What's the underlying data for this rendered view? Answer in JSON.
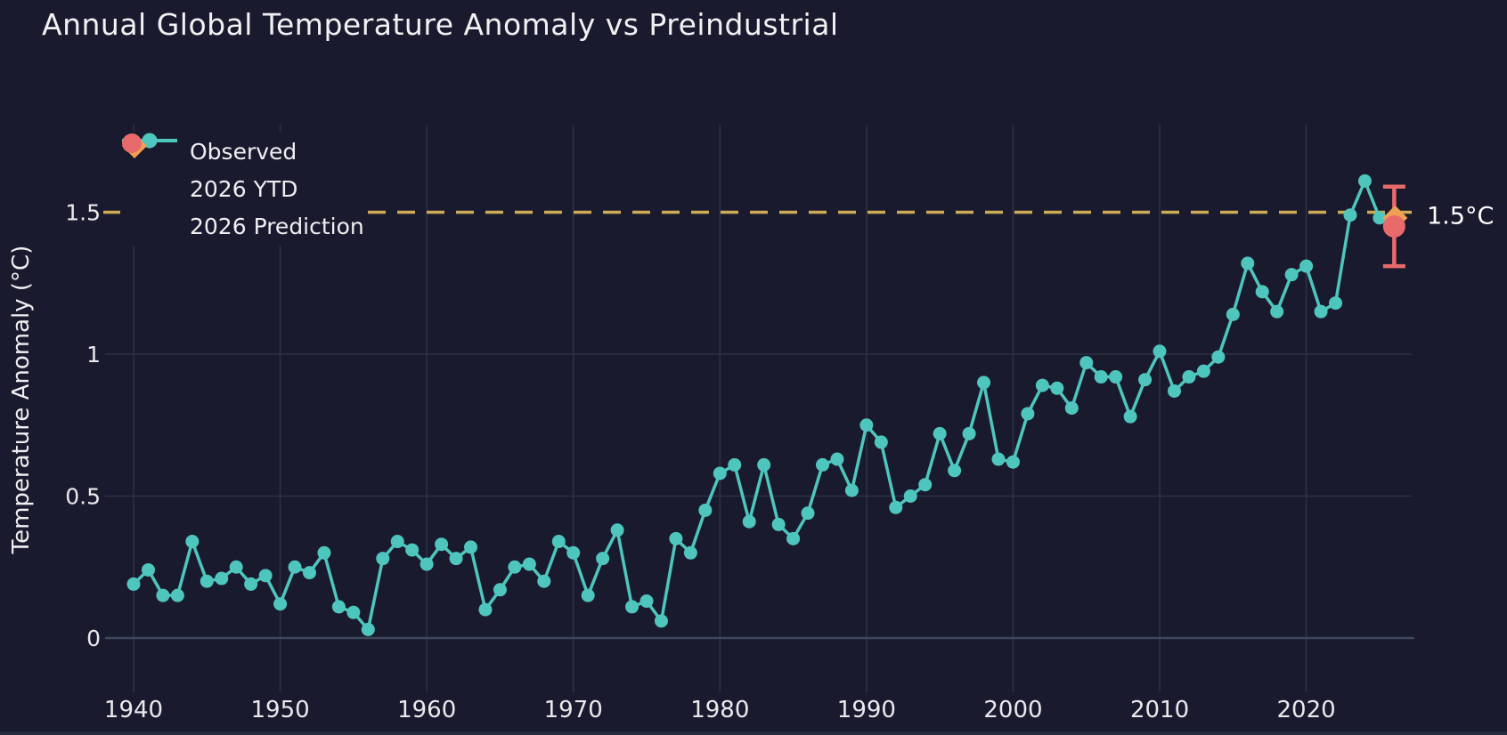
{
  "title": "Annual Global Temperature Anomaly vs Preindustrial",
  "annotation_label": "1.5°C",
  "colors": {
    "background": "#1a1a2e",
    "grid": "#2c3144",
    "zero_line": "#3d485e",
    "text": "#efeff1",
    "tick_text": "#e9e9ec",
    "observed": "#4ec6bd",
    "ytd": "#f0a053",
    "prediction": "#e96a6a",
    "threshold": "#ceac55",
    "annotation_text": "#ffffff"
  },
  "legend": {
    "items": [
      {
        "label": "Observed",
        "marker": "line-circle",
        "color": "#4ec6bd"
      },
      {
        "label": "2026 YTD",
        "marker": "diamond",
        "color": "#f0a053"
      },
      {
        "label": "2026 Prediction",
        "marker": "circle",
        "color": "#e96a6a"
      }
    ]
  },
  "chart_data": {
    "type": "line",
    "title": "Annual Global Temperature Anomaly vs Preindustrial",
    "xlabel": "",
    "ylabel": "Temperature Anomaly (°C)",
    "x_ticks": [
      1940,
      1950,
      1960,
      1970,
      1980,
      1990,
      2000,
      2010,
      2020
    ],
    "y_ticks": [
      0,
      0.5,
      1,
      1.5
    ],
    "y_tick_labels": [
      "0",
      "0.5",
      "1",
      "1.5"
    ],
    "xlim": [
      1938,
      2027.3
    ],
    "ylim": [
      -0.18,
      1.81
    ],
    "grid": true,
    "legend_position": "top-left",
    "reference_line": {
      "y": 1.5,
      "label": "1.5°C",
      "style": "dashed",
      "color": "#ceac55"
    },
    "series": [
      {
        "name": "Observed",
        "mode": "line+markers",
        "color": "#4ec6bd",
        "x": [
          1940,
          1941,
          1942,
          1943,
          1944,
          1945,
          1946,
          1947,
          1948,
          1949,
          1950,
          1951,
          1952,
          1953,
          1954,
          1955,
          1956,
          1957,
          1958,
          1959,
          1960,
          1961,
          1962,
          1963,
          1964,
          1965,
          1966,
          1967,
          1968,
          1969,
          1970,
          1971,
          1972,
          1973,
          1974,
          1975,
          1976,
          1977,
          1978,
          1979,
          1980,
          1981,
          1982,
          1983,
          1984,
          1985,
          1986,
          1987,
          1988,
          1989,
          1990,
          1991,
          1992,
          1993,
          1994,
          1995,
          1996,
          1997,
          1998,
          1999,
          2000,
          2001,
          2002,
          2003,
          2004,
          2005,
          2006,
          2007,
          2008,
          2009,
          2010,
          2011,
          2012,
          2013,
          2014,
          2015,
          2016,
          2017,
          2018,
          2019,
          2020,
          2021,
          2022,
          2023,
          2024,
          2025
        ],
        "y": [
          0.19,
          0.24,
          0.15,
          0.15,
          0.34,
          0.2,
          0.21,
          0.25,
          0.19,
          0.22,
          0.12,
          0.25,
          0.23,
          0.3,
          0.11,
          0.09,
          0.03,
          0.28,
          0.34,
          0.31,
          0.26,
          0.33,
          0.28,
          0.32,
          0.1,
          0.17,
          0.25,
          0.26,
          0.2,
          0.34,
          0.3,
          0.15,
          0.28,
          0.38,
          0.11,
          0.13,
          0.06,
          0.35,
          0.3,
          0.45,
          0.58,
          0.61,
          0.41,
          0.61,
          0.4,
          0.35,
          0.44,
          0.61,
          0.63,
          0.52,
          0.75,
          0.69,
          0.46,
          0.5,
          0.54,
          0.72,
          0.59,
          0.72,
          0.9,
          0.63,
          0.62,
          0.79,
          0.89,
          0.88,
          0.81,
          0.97,
          0.92,
          0.92,
          0.78,
          0.91,
          1.01,
          0.87,
          0.92,
          0.94,
          0.99,
          1.14,
          1.32,
          1.22,
          1.15,
          1.28,
          1.31,
          1.15,
          1.18,
          1.49,
          1.61,
          1.48
        ]
      },
      {
        "name": "2026 YTD",
        "mode": "diamond-marker",
        "color": "#f0a053",
        "x": [
          2026
        ],
        "y": [
          1.48
        ]
      },
      {
        "name": "2026 Prediction",
        "mode": "circle-marker-error",
        "color": "#e96a6a",
        "x": [
          2026
        ],
        "y": [
          1.45
        ],
        "error_y": 0.14
      }
    ]
  }
}
